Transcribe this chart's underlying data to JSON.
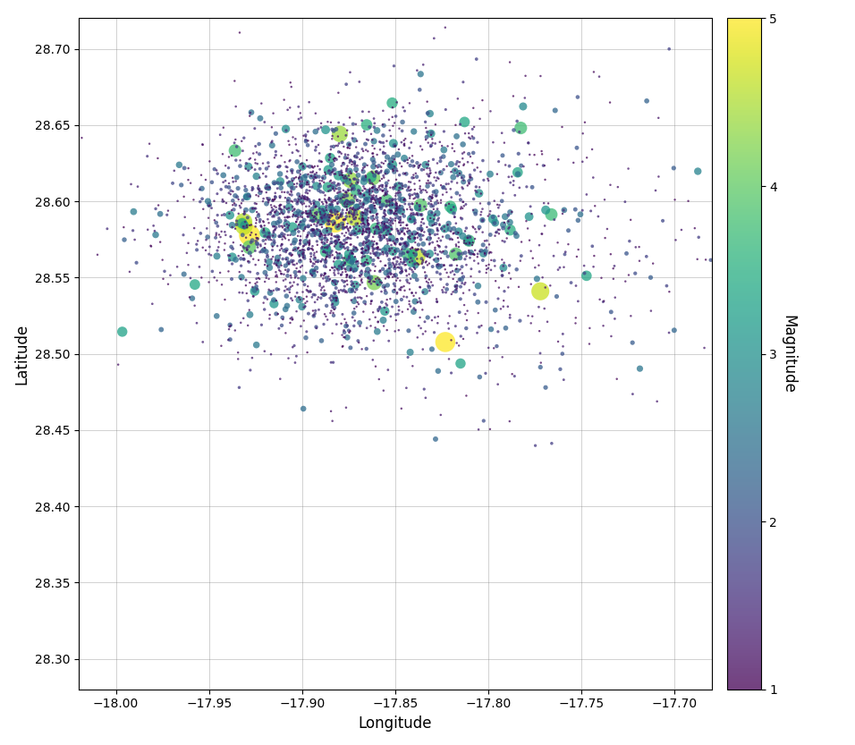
{
  "title": "",
  "xlabel": "Longitude",
  "ylabel": "Latitude",
  "xlim": [
    -18.02,
    -17.68
  ],
  "ylim": [
    28.28,
    28.72
  ],
  "xticks": [
    -18.0,
    -17.95,
    -17.9,
    -17.85,
    -17.8,
    -17.75,
    -17.7
  ],
  "yticks": [
    28.3,
    28.35,
    28.4,
    28.45,
    28.5,
    28.55,
    28.6,
    28.65,
    28.7
  ],
  "colormap": "viridis",
  "clim": [
    1.0,
    5.0
  ],
  "colorbar_label": "Magnitude",
  "colorbar_ticks": [
    1,
    2,
    3,
    4,
    5
  ],
  "grid": true,
  "seed": 42,
  "n_main": 2800,
  "cluster_lon_mean": -17.875,
  "cluster_lon_std": 0.04,
  "cluster_lat_mean": 28.585,
  "cluster_lat_std": 0.032,
  "n_scatter": 600,
  "scatter_lon_mean": -17.82,
  "scatter_lon_std": 0.07,
  "scatter_lat_mean": 28.575,
  "scatter_lat_std": 0.05,
  "mag_exp_scale": 0.55,
  "mag_min": 1.0,
  "mag_max": 5.2,
  "size_scale": 8.0,
  "size_power": 2.5,
  "alpha": 0.75,
  "figsize": [
    9.56,
    8.33
  ],
  "dpi": 100
}
